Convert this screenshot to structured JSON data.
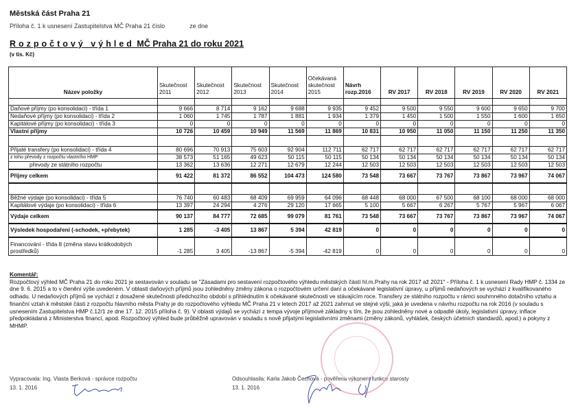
{
  "header": {
    "org": "Městská část Praha 21",
    "attachment": "Příloha č. 1 k usnesení Zastupitelstva MČ Praha 21 číslo",
    "attachment_date": "ze dne",
    "title_spaced": "Rozpočtový výhled",
    "title_rest": "MČ Praha 21 do roku 2021",
    "unit": "(v tis. Kč)"
  },
  "table": {
    "columns": [
      "Název položky",
      "Skutečnost 2011",
      "Skutečnost 2012",
      "Skutečnost 2013",
      "Skutečnost 2014",
      "Očekávaná skutečnost 2015",
      "Návrh rozp.2016",
      "RV 2017",
      "RV 2018",
      "RV 2019",
      "RV 2020",
      "RV 2021"
    ],
    "rows": [
      {
        "label": "Daňové příjmy (po konsolidaci) - třída 1",
        "values": [
          "9 666",
          "8 714",
          "9 162",
          "9 688",
          "9 935",
          "9 452",
          "9 500",
          "9 550",
          "9 600",
          "9 650",
          "9 700"
        ]
      },
      {
        "label": "Nedaňové příjmy (po konsolidaci) - třída 2",
        "values": [
          "1 060",
          "1 745",
          "1 787",
          "1 881",
          "1 934",
          "1 379",
          "1 450",
          "1 500",
          "1 550",
          "1 600",
          "1 650"
        ]
      },
      {
        "label": "Kapitálové příjmy (po konsolidaci) - třída 3",
        "values": [
          "0",
          "0",
          "0",
          "0",
          "0",
          "0",
          "0",
          "0",
          "0",
          "0",
          "0"
        ]
      },
      {
        "label": "Vlastní příjmy",
        "values": [
          "10 726",
          "10 459",
          "10 949",
          "11 569",
          "11 869",
          "10 831",
          "10 950",
          "11 050",
          "11 150",
          "11 250",
          "11 350"
        ]
      },
      {
        "label": "Přijaté transfery (po konsolidaci) - třída 4",
        "values": [
          "80 696",
          "70 913",
          "75 603",
          "92 904",
          "112 711",
          "62 717",
          "62 717",
          "62 717",
          "62 717",
          "62 717",
          "62 717"
        ]
      },
      {
        "label": "z toho převody z rozpočtu vlastního HMP",
        "values": [
          "38 573",
          "51 165",
          "49 623",
          "50 115",
          "50 115",
          "50 134",
          "50 134",
          "50 134",
          "50 134",
          "50 134",
          "50 134"
        ]
      },
      {
        "label": "převody ze státního rozpočtu",
        "values": [
          "13 362",
          "13 636",
          "12 271",
          "12 679",
          "12 244",
          "12 503",
          "12 503",
          "12 503",
          "12 503",
          "12 503",
          "12 503"
        ]
      },
      {
        "label": "Příjmy celkem",
        "values": [
          "91 422",
          "81 372",
          "86 552",
          "104 473",
          "124 580",
          "73 548",
          "73 667",
          "73 767",
          "73 867",
          "73 967",
          "74 067"
        ]
      },
      {
        "label": "Běžné výdaje (po konsolidaci) - třída 5",
        "values": [
          "76 740",
          "60 483",
          "68 409",
          "69 959",
          "64 096",
          "68 448",
          "68 000",
          "67 500",
          "68 100",
          "68 000",
          "68 000"
        ]
      },
      {
        "label": "Kapitálové výdaje (po konsolidaci) - třída 6",
        "values": [
          "13 397",
          "24 294",
          "4 276",
          "29 120",
          "17 665",
          "5 100",
          "5 667",
          "6 267",
          "5 767",
          "5 967",
          "6 067"
        ]
      },
      {
        "label": "Výdaje celkem",
        "values": [
          "90 137",
          "84 777",
          "72 685",
          "99 079",
          "81 761",
          "73 548",
          "73 667",
          "73 767",
          "73 867",
          "73 967",
          "74 067"
        ]
      },
      {
        "label": "Výsledek hospodaření (-schodek, +přebytek)",
        "values": [
          "1 285",
          "-3 405",
          "13 867",
          "5 394",
          "42 819",
          "0",
          "0",
          "0",
          "0",
          "0",
          "0"
        ]
      },
      {
        "label": "Financování - třída 8 (změna stavu krátkodobých prostředků)",
        "values": [
          "-1 285",
          "3 405",
          "-13 867",
          "-5 394",
          "-42 819",
          "0",
          "0",
          "0",
          "0",
          "0",
          "0"
        ]
      }
    ]
  },
  "comment": {
    "heading": "Komentář:",
    "text": "Rozpočtový výhled MČ Praha 21 do roku 2021 je sestavován v souladu se \"Zásadami pro sestavení rozpočtového výhledu městských částí hl.m.Prahy na rok 2017 až 2021\" - Příloha č. 1 k usnesení Rady HMP č. 1334 ze dne 9. 6. 2015 a to v členění výše uvedeném. V oblasti daňových příjmů jsou zohledněny změny zákona o rozpočtovém určení daní a očekávané legislativní úpravy, u příjmů nedaňových se vychází z kvalifikovaného odhadu. U nedaňových příjmů se vychází z dosažené skutečnosti předchozího období s přihlédnutím k očekávané skutečnosti ve stávajícím roce. Transfery ze státního rozpočtu v rámci souhrnného dotačního vztahu a finanční vztah k městské části z rozpočtu hlavního města Prahy je do rozpočtového výhledu MČ Praha 21 v letech 2017 až 2021 zahrnut ve stejné výši, jaká je uvedena v návrhu rozpočtu na rok 2016 (v souladu s usnesením Zastupitelstva HMP č.12/1 ze dne 17. 12. 2015 příloha č. 9). V oblasti výdajů se vychází z tempa vývoje příjmové základny s tím, že jsou zohledněny nové a odpadlé úkoly, legislativní úpravy, inflace předpokládaná z Ministerstva financí, apod. Rozpočtový výhled bude průběžně upravován v souladu s nově přijatými legislativními změnami (změny zákonů, vyhlášek, českých účetních standardů, apod.) a pokyny z MHMP."
  },
  "signatures": {
    "prepared_by": "Vypracovala: Ing. Vlasta Berková - správce rozpočtu",
    "prepared_date": "13. 1. 2016",
    "approved_by": "Odsouhlasila: Karla Jakob Čechová - pověřena výkonem funkce starosty",
    "approved_date": "13. 1. 2016"
  },
  "stamp": {
    "text": "MĚSTSKÁ ČÁST PRAHA 21",
    "color": "#f0a8c0"
  },
  "colors": {
    "signature_ink": "#3a4a9a"
  }
}
